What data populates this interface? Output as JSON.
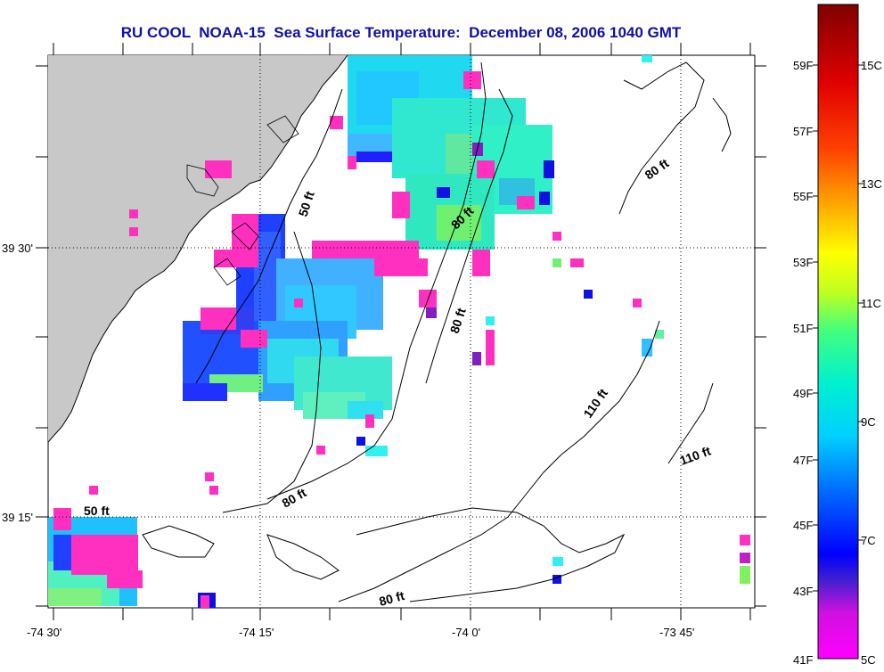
{
  "title": "RU COOL  NOAA-15  Sea Surface Temperature:  December 08, 2006 1040 GMT",
  "axes": {
    "x_ticks": [
      "-74 30'",
      "-74 15'",
      "-74 0'",
      "-73 45'"
    ],
    "y_ticks": [
      "39 30'",
      "39 15'"
    ]
  },
  "depth_labels": [
    "50 ft",
    "50 ft",
    "80 ft",
    "80 ft",
    "80 ft",
    "80 ft",
    "80 ft",
    "110 ft",
    "110 ft"
  ],
  "colorbar": {
    "fahrenheit": [
      "59F",
      "57F",
      "55F",
      "53F",
      "51F",
      "49F",
      "47F",
      "45F",
      "43F",
      "41F"
    ],
    "celsius": [
      "15C",
      "13C",
      "11C",
      "9C",
      "7C",
      "5C"
    ],
    "colors": [
      "#ff00ff",
      "#8020c0",
      "#0000ff",
      "#0080ff",
      "#00e0f0",
      "#00ffc0",
      "#80ff40",
      "#ffff00",
      "#ff8000",
      "#ff0000",
      "#900000"
    ]
  },
  "colors": {
    "land": "#c8c8c8",
    "title": "#1010a8",
    "coast": "#000000"
  }
}
